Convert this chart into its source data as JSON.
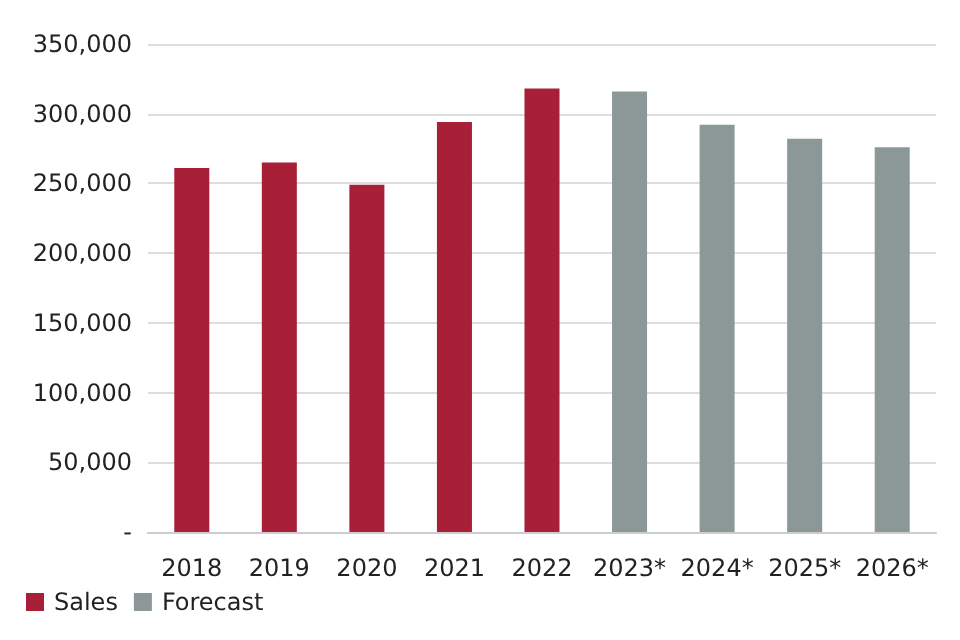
{
  "chart_data": {
    "type": "bar",
    "categories": [
      "2018",
      "2019",
      "2020",
      "2021",
      "2022",
      "2023*",
      "2024*",
      "2025*",
      "2026*"
    ],
    "series": [
      {
        "name": "Sales",
        "color": "#a82038",
        "values": [
          261000,
          265000,
          249000,
          294000,
          318000,
          null,
          null,
          null,
          null
        ]
      },
      {
        "name": "Forecast",
        "color": "#8c9898",
        "values": [
          null,
          null,
          null,
          null,
          null,
          316000,
          292000,
          282000,
          276000
        ]
      }
    ],
    "ylim": [
      0,
      350000
    ],
    "yticks": [
      {
        "value": 0,
        "label": "-"
      },
      {
        "value": 50000,
        "label": "50,000"
      },
      {
        "value": 100000,
        "label": "100,000"
      },
      {
        "value": 150000,
        "label": "150,000"
      },
      {
        "value": 200000,
        "label": "200,000"
      },
      {
        "value": 250000,
        "label": "250,000"
      },
      {
        "value": 300000,
        "label": "300,000"
      },
      {
        "value": 350000,
        "label": "350,000"
      }
    ],
    "grid": "y",
    "legend": "bottom left"
  }
}
